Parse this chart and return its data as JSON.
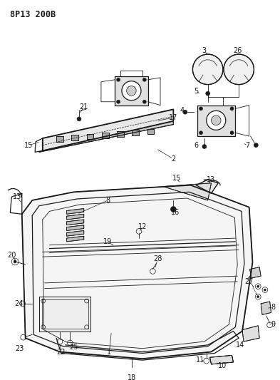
{
  "title": "8P13 200B",
  "bg_color": "#ffffff",
  "line_color": "#1a1a1a",
  "fig_width": 3.93,
  "fig_height": 5.33,
  "dpi": 100
}
